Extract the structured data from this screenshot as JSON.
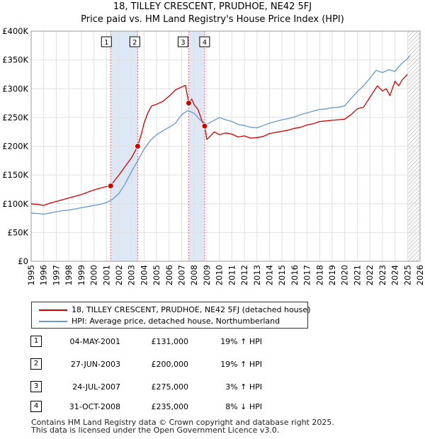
{
  "title": "18, TILLEY CRESCENT, PRUDHOE, NE42 5FJ",
  "subtitle": "Price paid vs. HM Land Registry's House Price Index (HPI)",
  "colors": {
    "red": "#cc0000",
    "blue": "#6699cc",
    "shade": "#dde7f5",
    "vline": "#e06666"
  },
  "legend": {
    "red_label": "18, TILLEY CRESCENT, PRUDHOE, NE42 5FJ (detached house)",
    "blue_label": "HPI: Average price, detached house, Northumberland"
  },
  "transactions": [
    {
      "num": "1",
      "date": "04-MAY-2001",
      "price": "£131,000",
      "hpi": "19% ↑ HPI"
    },
    {
      "num": "2",
      "date": "27-JUN-2003",
      "price": "£200,000",
      "hpi": "19% ↑ HPI"
    },
    {
      "num": "3",
      "date": "24-JUL-2007",
      "price": "£275,000",
      "hpi": "3% ↑ HPI"
    },
    {
      "num": "4",
      "date": "31-OCT-2008",
      "price": "£235,000",
      "hpi": "8% ↓ HPI"
    }
  ],
  "footer": {
    "line1": "Contains HM Land Registry data © Crown copyright and database right 2025.",
    "line2": "This data is licensed under the Open Government Licence v3.0."
  },
  "chart_data": {
    "type": "line",
    "title": "18, TILLEY CRESCENT, PRUDHOE, NE42 5FJ",
    "subtitle": "Price paid vs. HM Land Registry's House Price Index (HPI)",
    "xlim": [
      1995,
      2026
    ],
    "ylim": [
      0,
      400000
    ],
    "xticks": [
      1995,
      1996,
      1997,
      1998,
      1999,
      2000,
      2001,
      2002,
      2003,
      2004,
      2005,
      2006,
      2007,
      2008,
      2009,
      2010,
      2011,
      2012,
      2013,
      2014,
      2015,
      2016,
      2017,
      2018,
      2019,
      2020,
      2021,
      2022,
      2023,
      2024,
      2025,
      2026
    ],
    "yticks": [
      0,
      50000,
      100000,
      150000,
      200000,
      250000,
      300000,
      350000,
      400000
    ],
    "ytick_labels": [
      "£0",
      "£50K",
      "£100K",
      "£150K",
      "£200K",
      "£250K",
      "£300K",
      "£350K",
      "£400K"
    ],
    "grid": true,
    "shaded_periods": [
      [
        2001.34,
        2003.49
      ],
      [
        2007.56,
        2008.83
      ]
    ],
    "future_hatch_from": 2025.0,
    "markers": [
      {
        "label": "1",
        "x": 2001.34,
        "y": 131000
      },
      {
        "label": "2",
        "x": 2003.49,
        "y": 200000
      },
      {
        "label": "3",
        "x": 2007.56,
        "y": 275000
      },
      {
        "label": "4",
        "x": 2008.83,
        "y": 235000
      }
    ],
    "series": [
      {
        "name": "18, TILLEY CRESCENT, PRUDHOE, NE42 5FJ (detached house)",
        "color": "#cc0000",
        "x": [
          1995,
          1995.5,
          1996,
          1996.5,
          1997,
          1997.5,
          1998,
          1998.5,
          1999,
          1999.5,
          2000,
          2000.5,
          2001,
          2001.34,
          2001.7,
          2002,
          2002.5,
          2003,
          2003.49,
          2003.8,
          2004,
          2004.3,
          2004.6,
          2005,
          2005.5,
          2006,
          2006.5,
          2007,
          2007.3,
          2007.56,
          2007.8,
          2008,
          2008.3,
          2008.6,
          2008.83,
          2009,
          2009.3,
          2009.6,
          2010,
          2010.5,
          2011,
          2011.5,
          2012,
          2012.5,
          2013,
          2013.5,
          2014,
          2014.5,
          2015,
          2015.5,
          2016,
          2016.5,
          2017,
          2017.5,
          2018,
          2018.5,
          2019,
          2019.5,
          2020,
          2020.5,
          2021,
          2021.5,
          2022,
          2022.3,
          2022.6,
          2023,
          2023.3,
          2023.6,
          2024,
          2024.3,
          2024.6,
          2025
        ],
        "y": [
          100000,
          99000,
          97000,
          101000,
          104000,
          107000,
          110000,
          113000,
          116000,
          120000,
          124000,
          127000,
          130000,
          131000,
          142000,
          150000,
          165000,
          180000,
          200000,
          222000,
          240000,
          258000,
          270000,
          273000,
          278000,
          287000,
          298000,
          303000,
          306000,
          275000,
          282000,
          272000,
          264000,
          245000,
          235000,
          212000,
          218000,
          225000,
          220000,
          223000,
          221000,
          216000,
          218000,
          214000,
          215000,
          217000,
          222000,
          224000,
          226000,
          228000,
          231000,
          233000,
          237000,
          239000,
          243000,
          244000,
          245000,
          246000,
          247000,
          255000,
          265000,
          268000,
          285000,
          295000,
          305000,
          296000,
          300000,
          288000,
          313000,
          305000,
          316000,
          325000
        ]
      },
      {
        "name": "HPI: Average price, detached house, Northumberland",
        "color": "#6699cc",
        "x": [
          1995,
          1995.5,
          1996,
          1996.5,
          1997,
          1997.5,
          1998,
          1998.5,
          1999,
          1999.5,
          2000,
          2000.5,
          2001,
          2001.5,
          2002,
          2002.5,
          2003,
          2003.5,
          2004,
          2004.5,
          2005,
          2005.5,
          2006,
          2006.5,
          2007,
          2007.5,
          2008,
          2008.5,
          2009,
          2009.5,
          2010,
          2010.5,
          2011,
          2011.5,
          2012,
          2012.5,
          2013,
          2013.5,
          2014,
          2014.5,
          2015,
          2015.5,
          2016,
          2016.5,
          2017,
          2017.5,
          2018,
          2018.5,
          2019,
          2019.5,
          2020,
          2020.5,
          2021,
          2021.5,
          2022,
          2022.5,
          2023,
          2023.5,
          2024,
          2024.5,
          2025,
          2025.2
        ],
        "y": [
          84000,
          83000,
          82000,
          84000,
          86000,
          88000,
          89000,
          91000,
          93000,
          95000,
          97000,
          99000,
          102000,
          108000,
          118000,
          135000,
          156000,
          175000,
          195000,
          210000,
          220000,
          227000,
          233000,
          240000,
          255000,
          262000,
          257000,
          245000,
          238000,
          244000,
          250000,
          246000,
          243000,
          238000,
          236000,
          233000,
          232000,
          236000,
          240000,
          243000,
          246000,
          248000,
          251000,
          255000,
          258000,
          261000,
          264000,
          265000,
          267000,
          268000,
          270000,
          283000,
          295000,
          305000,
          318000,
          332000,
          328000,
          333000,
          330000,
          343000,
          352000,
          358000
        ]
      }
    ]
  }
}
